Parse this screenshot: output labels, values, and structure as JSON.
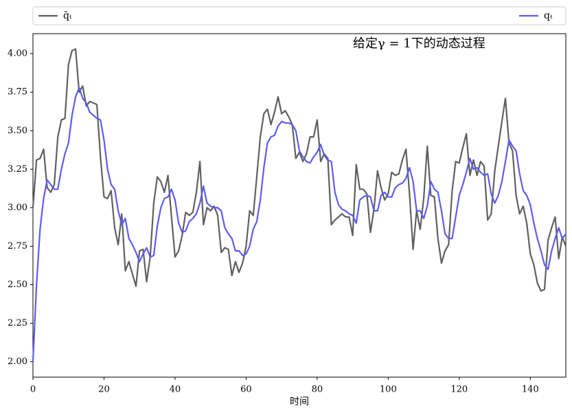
{
  "chart_data": {
    "type": "line",
    "title": "给定γ = 1下的动态过程",
    "x_label": "时间",
    "x": [
      0,
      1,
      2,
      3,
      4,
      5,
      6,
      7,
      8,
      9,
      10,
      11,
      12,
      13,
      14,
      15,
      16,
      17,
      18,
      19,
      20,
      21,
      22,
      23,
      24,
      25,
      26,
      27,
      28,
      29,
      30,
      31,
      32,
      33,
      34,
      35,
      36,
      37,
      38,
      39,
      40,
      41,
      42,
      43,
      44,
      45,
      46,
      47,
      48,
      49,
      50,
      51,
      52,
      53,
      54,
      55,
      56,
      57,
      58,
      59,
      60,
      61,
      62,
      63,
      64,
      65,
      66,
      67,
      68,
      69,
      70,
      71,
      72,
      73,
      74,
      75,
      76,
      77,
      78,
      79,
      80,
      81,
      82,
      83,
      84,
      85,
      86,
      87,
      88,
      89,
      90,
      91,
      92,
      93,
      94,
      95,
      96,
      97,
      98,
      99,
      100,
      101,
      102,
      103,
      104,
      105,
      106,
      107,
      108,
      109,
      110,
      111,
      112,
      113,
      114,
      115,
      116,
      117,
      118,
      119,
      120,
      121,
      122,
      123,
      124,
      125,
      126,
      127,
      128,
      129,
      130,
      131,
      132,
      133,
      134,
      135,
      136,
      137,
      138,
      139,
      140,
      141,
      142,
      143,
      144,
      145,
      146,
      147,
      148,
      149,
      150
    ],
    "series": [
      {
        "name": "q̄ₜ",
        "color": "#5f5f5f",
        "values": [
          3.0,
          3.31,
          3.32,
          3.38,
          3.13,
          3.1,
          3.15,
          3.46,
          3.57,
          3.58,
          3.93,
          4.02,
          4.03,
          3.75,
          3.79,
          3.66,
          3.69,
          3.68,
          3.67,
          3.33,
          3.07,
          3.06,
          3.11,
          2.87,
          2.76,
          2.96,
          2.59,
          2.65,
          2.57,
          2.49,
          2.72,
          2.73,
          2.52,
          2.68,
          3.03,
          3.2,
          3.17,
          3.1,
          3.21,
          2.94,
          2.68,
          2.72,
          2.82,
          2.97,
          2.95,
          2.97,
          3.1,
          3.3,
          2.89,
          3.0,
          2.98,
          3.01,
          2.95,
          2.71,
          2.74,
          2.73,
          2.56,
          2.65,
          2.58,
          2.64,
          2.75,
          2.98,
          2.95,
          3.2,
          3.46,
          3.61,
          3.64,
          3.54,
          3.62,
          3.72,
          3.61,
          3.63,
          3.59,
          3.54,
          3.32,
          3.36,
          3.3,
          3.35,
          3.46,
          3.46,
          3.57,
          3.3,
          3.35,
          3.32,
          2.89,
          2.92,
          2.94,
          2.96,
          2.94,
          2.94,
          2.82,
          3.28,
          3.12,
          3.12,
          3.09,
          2.84,
          2.99,
          3.24,
          3.13,
          3.05,
          3.09,
          3.23,
          3.21,
          3.22,
          3.31,
          3.38,
          3.09,
          2.73,
          2.98,
          2.86,
          3.06,
          3.4,
          3.08,
          3.07,
          2.8,
          2.64,
          2.72,
          2.76,
          3.11,
          3.3,
          3.29,
          3.39,
          3.48,
          3.21,
          3.31,
          3.21,
          3.3,
          3.27,
          2.92,
          2.96,
          3.24,
          3.4,
          3.56,
          3.71,
          3.42,
          3.37,
          3.08,
          2.96,
          3.01,
          2.9,
          2.7,
          2.63,
          2.51,
          2.46,
          2.47,
          2.79,
          2.87,
          2.94,
          2.67,
          2.81,
          2.75
        ]
      },
      {
        "name": "qₜ",
        "color": "#5c5cf0",
        "values": [
          2.0,
          2.5,
          2.86,
          3.06,
          3.18,
          3.15,
          3.12,
          3.12,
          3.25,
          3.35,
          3.42,
          3.6,
          3.72,
          3.78,
          3.71,
          3.68,
          3.62,
          3.6,
          3.58,
          3.57,
          3.44,
          3.25,
          3.15,
          3.12,
          2.98,
          2.89,
          2.93,
          2.8,
          2.76,
          2.71,
          2.65,
          2.7,
          2.74,
          2.68,
          2.69,
          2.88,
          3.0,
          3.06,
          3.07,
          3.12,
          3.05,
          2.9,
          2.84,
          2.85,
          2.91,
          2.93,
          2.96,
          3.03,
          3.14,
          3.03,
          3.01,
          3.0,
          3.0,
          2.98,
          2.87,
          2.83,
          2.8,
          2.72,
          2.72,
          2.69,
          2.7,
          2.75,
          2.86,
          2.91,
          3.05,
          3.26,
          3.42,
          3.46,
          3.47,
          3.53,
          3.56,
          3.55,
          3.55,
          3.54,
          3.5,
          3.37,
          3.33,
          3.3,
          3.29,
          3.33,
          3.36,
          3.41,
          3.34,
          3.31,
          3.3,
          3.1,
          3.02,
          2.99,
          2.98,
          2.96,
          2.95,
          2.9,
          3.05,
          3.07,
          3.08,
          3.07,
          2.98,
          2.98,
          3.08,
          3.1,
          3.07,
          3.07,
          3.13,
          3.15,
          3.16,
          3.19,
          3.26,
          3.17,
          2.98,
          2.98,
          2.93,
          3.01,
          3.17,
          3.12,
          3.1,
          2.98,
          2.83,
          2.8,
          2.8,
          2.94,
          3.08,
          3.15,
          3.23,
          3.32,
          3.25,
          3.26,
          3.23,
          3.21,
          3.22,
          3.09,
          3.03,
          3.08,
          3.17,
          3.3,
          3.44,
          3.4,
          3.37,
          3.22,
          3.11,
          3.08,
          3.02,
          2.9,
          2.8,
          2.72,
          2.63,
          2.6,
          2.72,
          2.8,
          2.87,
          2.8,
          2.83
        ]
      }
    ],
    "xlim": [
      0,
      150
    ],
    "xticks": [
      0,
      20,
      40,
      60,
      80,
      100,
      120,
      140
    ],
    "ylim": [
      1.9,
      4.13
    ],
    "yticks": [
      {
        "value": 2,
        "label": "2.00"
      },
      {
        "value": 2.25,
        "label": "2.25"
      },
      {
        "value": 2.5,
        "label": "2.50"
      },
      {
        "value": 2.75,
        "label": "2.75"
      },
      {
        "value": 3,
        "label": "3.00"
      },
      {
        "value": 3.25,
        "label": "3.25"
      },
      {
        "value": 3.5,
        "label": "3.50"
      },
      {
        "value": 3.75,
        "label": "3.75"
      },
      {
        "value": 4,
        "label": "4.00"
      }
    ],
    "legend": "above",
    "grid": false
  }
}
